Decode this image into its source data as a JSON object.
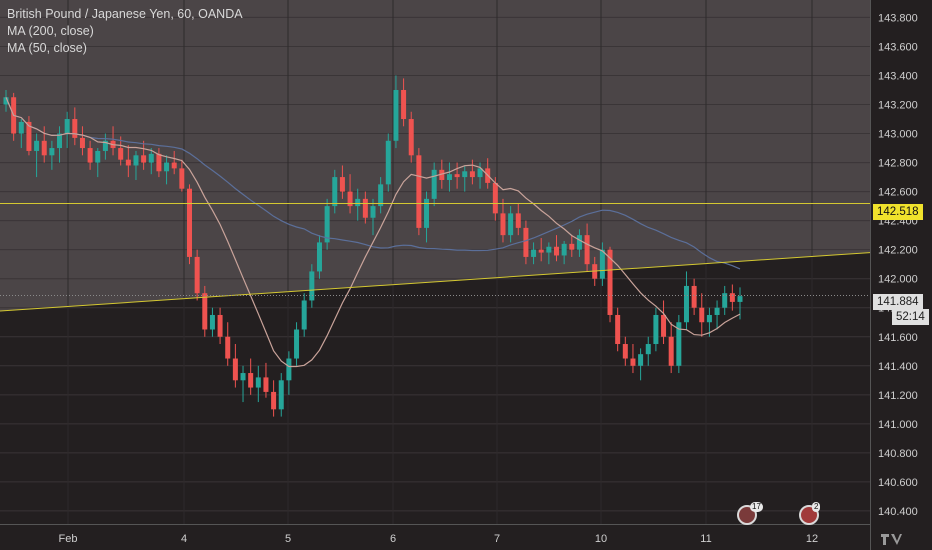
{
  "legend": {
    "symbol": "British Pound / Japanese Yen, 60, OANDA",
    "ma200": "MA (200, close)",
    "ma50": "MA (50, close)"
  },
  "colors": {
    "background_dark": "#231f20",
    "background_highlight": "#4b4547",
    "up_candle": "#26a69a",
    "down_candle": "#ef5350",
    "ma200": "#5b6f9a",
    "ma50": "#c9a39a",
    "level_line": "#d4c831",
    "trend_line": "#d4c831"
  },
  "badges": {
    "level": "142.518",
    "price": "141.884",
    "timer": "52:14",
    "price_partial": "14"
  },
  "events": [
    {
      "name": "uk-flag-event",
      "count": "17"
    },
    {
      "name": "target-event",
      "count": "2"
    }
  ],
  "chart_data": {
    "type": "candlestick",
    "title": "British Pound / Japanese Yen, 60, OANDA",
    "y_ticks": [
      "140.400",
      "140.600",
      "140.800",
      "141.000",
      "141.200",
      "141.400",
      "141.600",
      "141.800",
      "142.000",
      "142.200",
      "142.400",
      "142.600",
      "142.800",
      "143.000",
      "143.200",
      "143.400",
      "143.600",
      "143.800"
    ],
    "x_ticks": [
      "Feb",
      "4",
      "5",
      "6",
      "7",
      "10",
      "11",
      "12"
    ],
    "ylim": [
      140.31,
      143.92
    ],
    "indicators": [
      "MA (200, close)",
      "MA (50, close)"
    ],
    "horizontal_level": 142.518,
    "last_price": 141.884,
    "trend_line": {
      "start": 141.777,
      "end": 142.18
    },
    "ohlc": [
      [
        143.2,
        143.3,
        143.15,
        143.25
      ],
      [
        143.25,
        143.28,
        142.95,
        143.0
      ],
      [
        143.0,
        143.1,
        142.9,
        143.08
      ],
      [
        143.08,
        143.12,
        142.85,
        142.88
      ],
      [
        142.88,
        143.0,
        142.7,
        142.95
      ],
      [
        142.95,
        143.05,
        142.8,
        142.85
      ],
      [
        142.85,
        142.95,
        142.75,
        142.9
      ],
      [
        142.9,
        143.05,
        142.8,
        143.0
      ],
      [
        143.0,
        143.15,
        142.9,
        143.1
      ],
      [
        143.1,
        143.18,
        142.92,
        142.97
      ],
      [
        142.97,
        143.05,
        142.85,
        142.9
      ],
      [
        142.9,
        142.95,
        142.75,
        142.8
      ],
      [
        142.8,
        142.9,
        142.7,
        142.88
      ],
      [
        142.88,
        143.0,
        142.82,
        142.95
      ],
      [
        142.95,
        143.05,
        142.85,
        142.9
      ],
      [
        142.9,
        142.98,
        142.78,
        142.82
      ],
      [
        142.82,
        142.92,
        142.7,
        142.78
      ],
      [
        142.78,
        142.88,
        142.68,
        142.85
      ],
      [
        142.85,
        142.95,
        142.75,
        142.8
      ],
      [
        142.8,
        142.9,
        142.72,
        142.86
      ],
      [
        142.86,
        142.9,
        142.7,
        142.74
      ],
      [
        142.74,
        142.85,
        142.65,
        142.8
      ],
      [
        142.8,
        142.88,
        142.72,
        142.76
      ],
      [
        142.76,
        142.82,
        142.6,
        142.62
      ],
      [
        142.62,
        142.65,
        142.1,
        142.15
      ],
      [
        142.15,
        142.2,
        141.85,
        141.9
      ],
      [
        141.9,
        141.95,
        141.6,
        141.65
      ],
      [
        141.65,
        141.8,
        141.6,
        141.75
      ],
      [
        141.75,
        141.8,
        141.55,
        141.6
      ],
      [
        141.6,
        141.7,
        141.4,
        141.45
      ],
      [
        141.45,
        141.55,
        141.25,
        141.3
      ],
      [
        141.3,
        141.4,
        141.15,
        141.35
      ],
      [
        141.35,
        141.45,
        141.2,
        141.25
      ],
      [
        141.25,
        141.4,
        141.15,
        141.32
      ],
      [
        141.32,
        141.42,
        141.18,
        141.22
      ],
      [
        141.22,
        141.3,
        141.05,
        141.1
      ],
      [
        141.1,
        141.35,
        141.05,
        141.3
      ],
      [
        141.3,
        141.5,
        141.2,
        141.45
      ],
      [
        141.45,
        141.7,
        141.4,
        141.65
      ],
      [
        141.65,
        141.9,
        141.6,
        141.85
      ],
      [
        141.85,
        142.1,
        141.8,
        142.05
      ],
      [
        142.05,
        142.3,
        142.0,
        142.25
      ],
      [
        142.25,
        142.55,
        142.2,
        142.5
      ],
      [
        142.5,
        142.75,
        142.45,
        142.7
      ],
      [
        142.7,
        142.78,
        142.55,
        142.6
      ],
      [
        142.6,
        142.72,
        142.45,
        142.5
      ],
      [
        142.5,
        142.62,
        142.4,
        142.55
      ],
      [
        142.55,
        142.6,
        142.38,
        142.42
      ],
      [
        142.42,
        142.55,
        142.3,
        142.5
      ],
      [
        142.5,
        142.7,
        142.45,
        142.65
      ],
      [
        142.65,
        143.0,
        142.6,
        142.95
      ],
      [
        142.95,
        143.4,
        142.9,
        143.3
      ],
      [
        143.3,
        143.38,
        143.05,
        143.1
      ],
      [
        143.1,
        143.15,
        142.8,
        142.85
      ],
      [
        142.85,
        142.9,
        142.3,
        142.35
      ],
      [
        142.35,
        142.6,
        142.25,
        142.55
      ],
      [
        142.55,
        142.8,
        142.5,
        142.75
      ],
      [
        142.75,
        142.82,
        142.62,
        142.68
      ],
      [
        142.68,
        142.8,
        142.6,
        142.72
      ],
      [
        142.72,
        142.8,
        142.62,
        142.7
      ],
      [
        142.7,
        142.78,
        142.6,
        142.74
      ],
      [
        142.74,
        142.82,
        142.65,
        142.7
      ],
      [
        142.7,
        142.8,
        142.62,
        142.76
      ],
      [
        142.76,
        142.83,
        142.62,
        142.66
      ],
      [
        142.66,
        142.7,
        142.4,
        142.45
      ],
      [
        142.45,
        142.55,
        142.25,
        142.3
      ],
      [
        142.3,
        142.5,
        142.25,
        142.45
      ],
      [
        142.45,
        142.52,
        142.3,
        142.35
      ],
      [
        142.35,
        142.4,
        142.1,
        142.15
      ],
      [
        142.15,
        142.25,
        142.1,
        142.2
      ],
      [
        142.2,
        142.28,
        142.12,
        142.18
      ],
      [
        142.18,
        142.25,
        142.1,
        142.22
      ],
      [
        142.22,
        142.3,
        142.12,
        142.16
      ],
      [
        142.16,
        142.26,
        142.1,
        142.24
      ],
      [
        142.24,
        142.3,
        142.15,
        142.2
      ],
      [
        142.2,
        142.34,
        142.15,
        142.3
      ],
      [
        142.3,
        142.38,
        142.05,
        142.1
      ],
      [
        142.1,
        142.15,
        141.95,
        142.0
      ],
      [
        142.0,
        142.25,
        141.95,
        142.2
      ],
      [
        142.2,
        142.22,
        141.7,
        141.75
      ],
      [
        141.75,
        141.8,
        141.5,
        141.55
      ],
      [
        141.55,
        141.6,
        141.4,
        141.45
      ],
      [
        141.45,
        141.55,
        141.35,
        141.4
      ],
      [
        141.4,
        141.52,
        141.3,
        141.48
      ],
      [
        141.48,
        141.6,
        141.4,
        141.55
      ],
      [
        141.55,
        141.8,
        141.5,
        141.75
      ],
      [
        141.75,
        141.85,
        141.55,
        141.6
      ],
      [
        141.6,
        141.7,
        141.35,
        141.4
      ],
      [
        141.4,
        141.75,
        141.35,
        141.7
      ],
      [
        141.7,
        142.05,
        141.65,
        141.95
      ],
      [
        141.95,
        142.0,
        141.75,
        141.8
      ],
      [
        141.8,
        141.9,
        141.6,
        141.7
      ],
      [
        141.7,
        141.8,
        141.6,
        141.75
      ],
      [
        141.75,
        141.85,
        141.65,
        141.8
      ],
      [
        141.8,
        141.95,
        141.75,
        141.9
      ],
      [
        141.9,
        141.96,
        141.78,
        141.84
      ],
      [
        141.84,
        141.94,
        141.72,
        141.88
      ]
    ]
  }
}
